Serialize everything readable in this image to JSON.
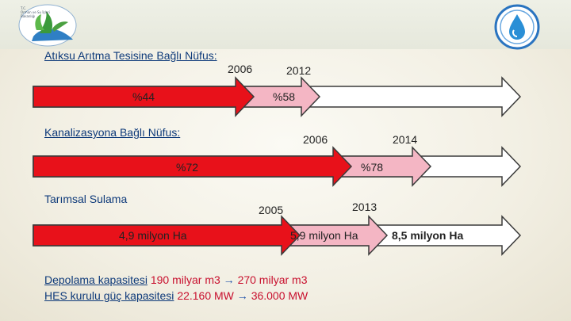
{
  "logos": {
    "left_text": [
      "T.C.",
      "Orman ve Su İşleri",
      "Bakanlığı"
    ],
    "right_name": "water-drop-seal"
  },
  "colors": {
    "arrow_red": "#e8111a",
    "arrow_pink": "#f4b6c4",
    "arrow_white": "#ffffff",
    "heading_blue": "#0e3a7a",
    "value_red": "#c8102e"
  },
  "section1": {
    "heading": "Atıksu Arıtma Tesisine Bağlı Nüfus:",
    "year_start": "2006",
    "year_end": "2012",
    "value_start": "%44",
    "value_end": "%58",
    "fill_start_pct": 44,
    "fill_end_pct": 58
  },
  "section2": {
    "heading": "Kanalizasyona Bağlı Nüfus:",
    "year_start": "2006",
    "year_end": "2014",
    "value_start": "%72",
    "value_end": "%78",
    "fill_start_pct": 72,
    "fill_end_pct": 78
  },
  "section3": {
    "heading": "Tarımsal Sulama",
    "year_start": "2005",
    "year_end": "2013",
    "value_start": "4,9 milyon Ha",
    "value_mid": "5,9 milyon Ha",
    "value_end": "8,5 milyon Ha"
  },
  "footer": {
    "line1_label": "Depolama kapasitesi",
    "line1_from": "190 milyar m3",
    "line1_arrow": "→",
    "line1_to": "270 milyar m3",
    "line2_label": "HES kurulu güç kapasitesi",
    "line2_from": "22.160 MW",
    "line2_arrow": "→",
    "line2_to": "36.000 MW"
  }
}
